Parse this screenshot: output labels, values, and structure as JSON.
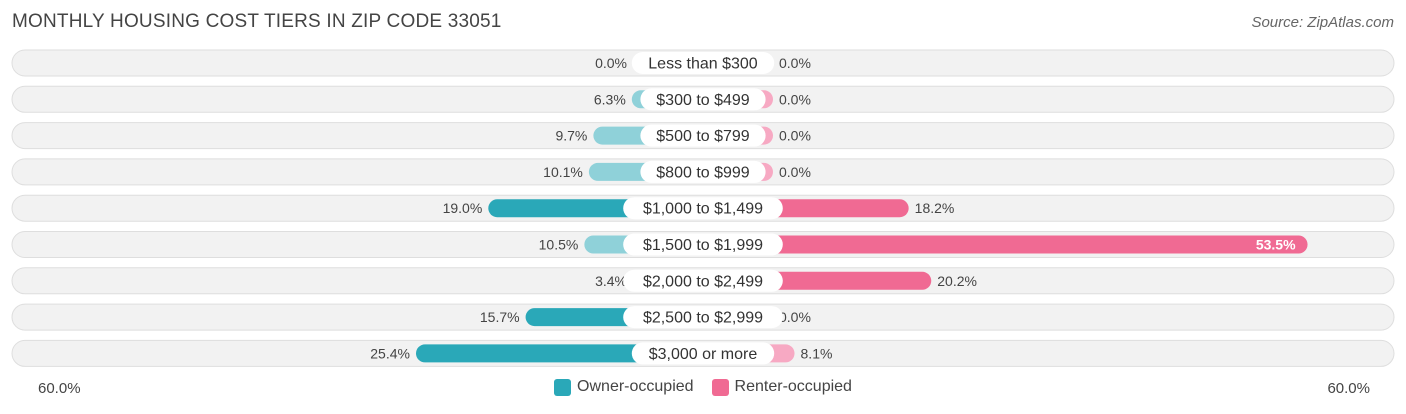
{
  "title": "MONTHLY HOUSING COST TIERS IN ZIP CODE 33051",
  "source": "Source: ZipAtlas.com",
  "axis": {
    "left_label": "60.0%",
    "right_label": "60.0%"
  },
  "legend": {
    "owner": "Owner-occupied",
    "renter": "Renter-occupied"
  },
  "colors": {
    "owner_strong": "#2aa8b8",
    "owner_light": "#8fd1d9",
    "renter_strong": "#f06a93",
    "renter_light": "#f7a9c3",
    "row_bg": "#f2f2f2",
    "row_border": "#dedede"
  },
  "chart_data": {
    "type": "bar",
    "orientation": "diverging-horizontal",
    "max": 60.0,
    "categories": [
      "Less than $300",
      "$300 to $499",
      "$500 to $799",
      "$800 to $999",
      "$1,000 to $1,499",
      "$1,500 to $1,999",
      "$2,000 to $2,499",
      "$2,500 to $2,999",
      "$3,000 or more"
    ],
    "series": [
      {
        "name": "Owner-occupied",
        "values": [
          0.0,
          6.3,
          9.7,
          10.1,
          19.0,
          10.5,
          3.4,
          15.7,
          25.4
        ],
        "labels": [
          "0.0%",
          "6.3%",
          "9.7%",
          "10.1%",
          "19.0%",
          "10.5%",
          "3.4%",
          "15.7%",
          "25.4%"
        ]
      },
      {
        "name": "Renter-occupied",
        "values": [
          0.0,
          0.0,
          0.0,
          0.0,
          18.2,
          53.5,
          20.2,
          0.0,
          8.1
        ],
        "labels": [
          "0.0%",
          "0.0%",
          "0.0%",
          "0.0%",
          "18.2%",
          "53.5%",
          "20.2%",
          "0.0%",
          "8.1%"
        ]
      }
    ]
  }
}
